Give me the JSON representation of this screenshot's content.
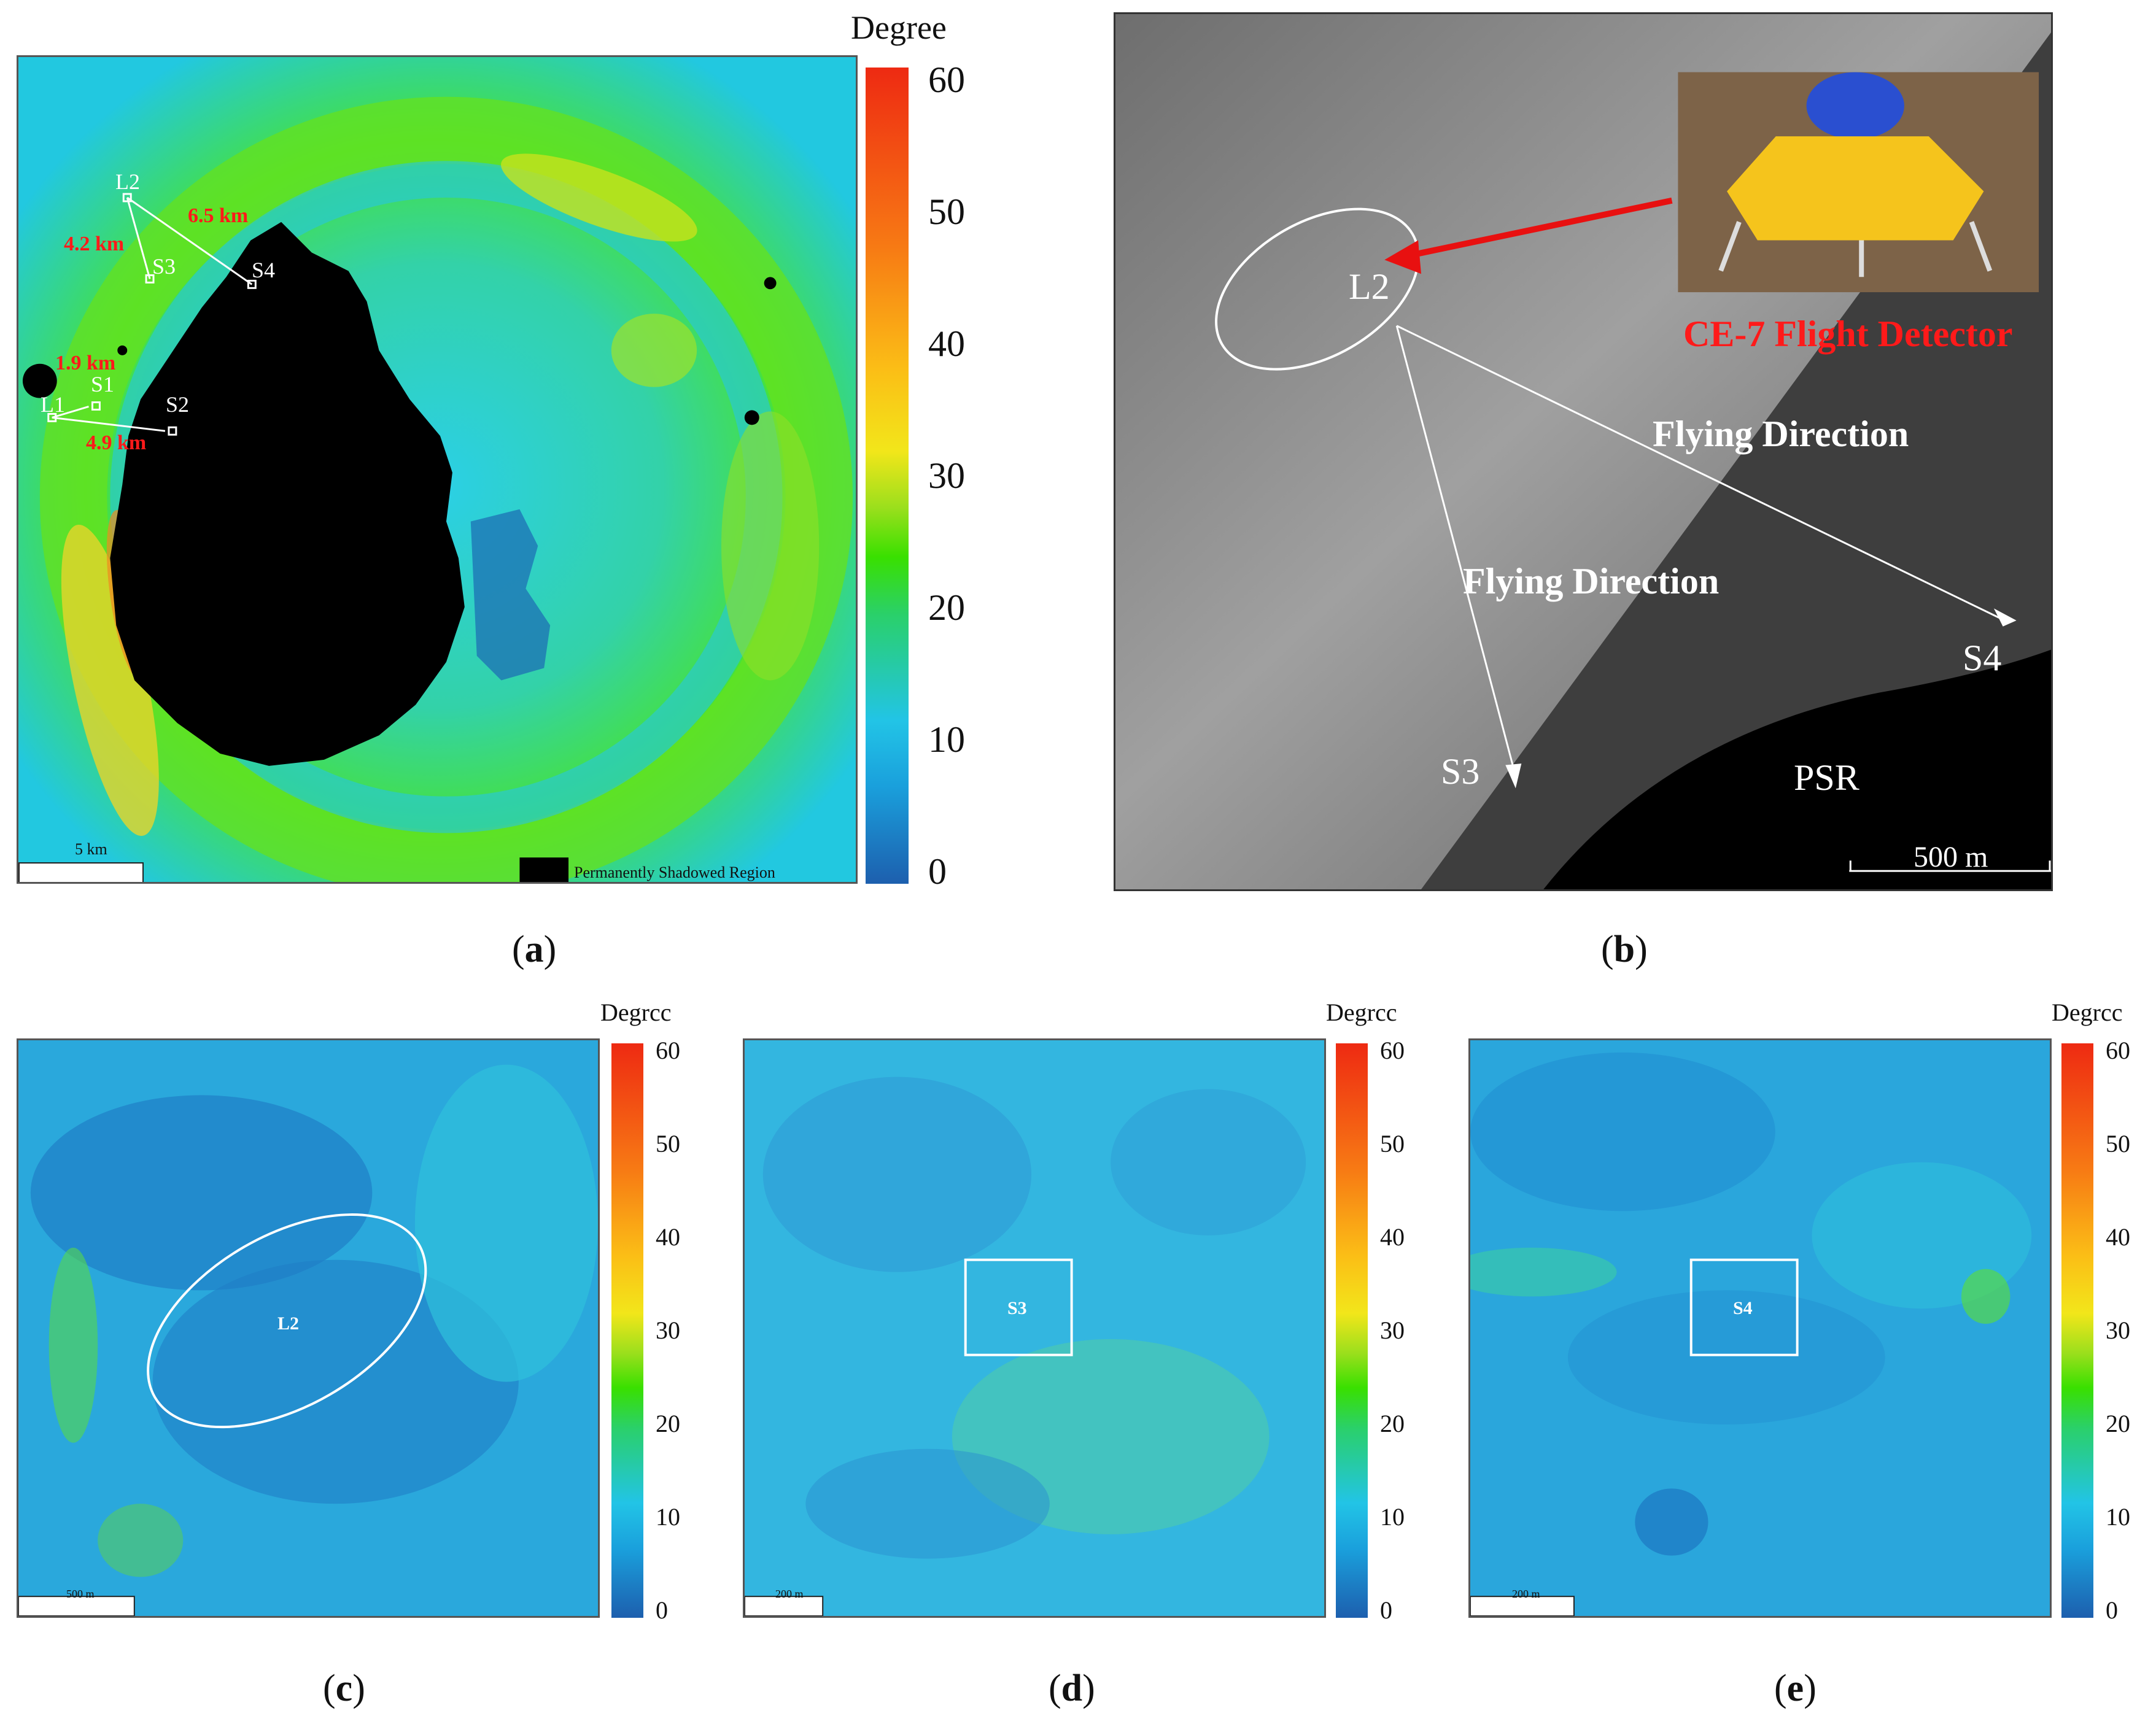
{
  "captions": {
    "a": "a",
    "b": "b",
    "c": "c",
    "d": "d",
    "e": "e"
  },
  "colorbar": {
    "title": "Degree",
    "title_small": "Degrcc",
    "ticks": [
      "60",
      "50",
      "40",
      "30",
      "20",
      "10",
      "0"
    ],
    "range": [
      0,
      60
    ],
    "colors": [
      "#1d5fae",
      "#22c4e6",
      "#39e000",
      "#f2e61a",
      "#f77a14",
      "#ee2a12"
    ]
  },
  "panel_a": {
    "sites": {
      "L1": "L1",
      "L2": "L2",
      "S1": "S1",
      "S2": "S2",
      "S3": "S3",
      "S4": "S4"
    },
    "distances": {
      "l2_s4": "6.5 km",
      "l2_s3": "4.2 km",
      "l1_s1": "1.9 km",
      "l1_s2": "4.9 km"
    },
    "scale": "5 km",
    "legend_psr": "Permanently Shadowed Region"
  },
  "panel_b": {
    "site_l2": "L2",
    "site_s3": "S3",
    "site_s4": "S4",
    "psr": "PSR",
    "detector_label": "CE-7 Flight Detector",
    "flying_direction_1": "Flying Direction",
    "flying_direction_2": "Flying Direction",
    "scale": "500 m"
  },
  "panel_c": {
    "site": "L2",
    "scale": "500 m"
  },
  "panel_d": {
    "site": "S3",
    "scale": "200 m"
  },
  "panel_e": {
    "site": "S4",
    "scale": "200 m"
  }
}
